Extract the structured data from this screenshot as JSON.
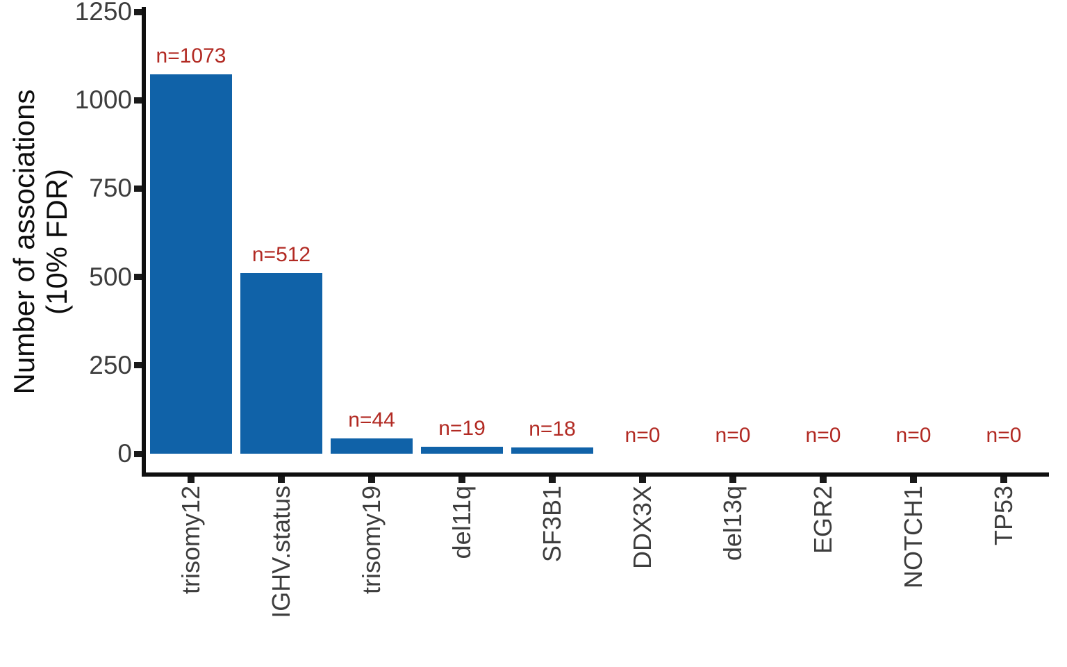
{
  "chart_data": {
    "type": "bar",
    "title": "",
    "xlabel": "",
    "ylabel": "Number of associations (10% FDR)",
    "ylabel_lines": [
      "Number of associations",
      "(10% FDR)"
    ],
    "categories": [
      "trisomy12",
      "IGHV.status",
      "trisomy19",
      "del11q",
      "SF3B1",
      "DDX3X",
      "del13q",
      "EGR2",
      "NOTCH1",
      "TP53"
    ],
    "values": [
      1073,
      512,
      44,
      19,
      18,
      0,
      0,
      0,
      0,
      0
    ],
    "bar_labels": [
      "n=1073",
      "n=512",
      "n=44",
      "n=19",
      "n=18",
      "n=0",
      "n=0",
      "n=0",
      "n=0",
      "n=0"
    ],
    "yticks": [
      0,
      250,
      500,
      750,
      1000,
      1250
    ],
    "ylim": [
      0,
      1250
    ],
    "grid": false,
    "legend": "none",
    "colors": {
      "bar": "#1062A8",
      "bar_label": "#B22A23",
      "axis_line": "#0f0f0f",
      "tick_mark": "#1a1a1a",
      "tick_label": "#3d3d3d",
      "axis_title": "#0d0d0d",
      "background": "#ffffff"
    }
  }
}
